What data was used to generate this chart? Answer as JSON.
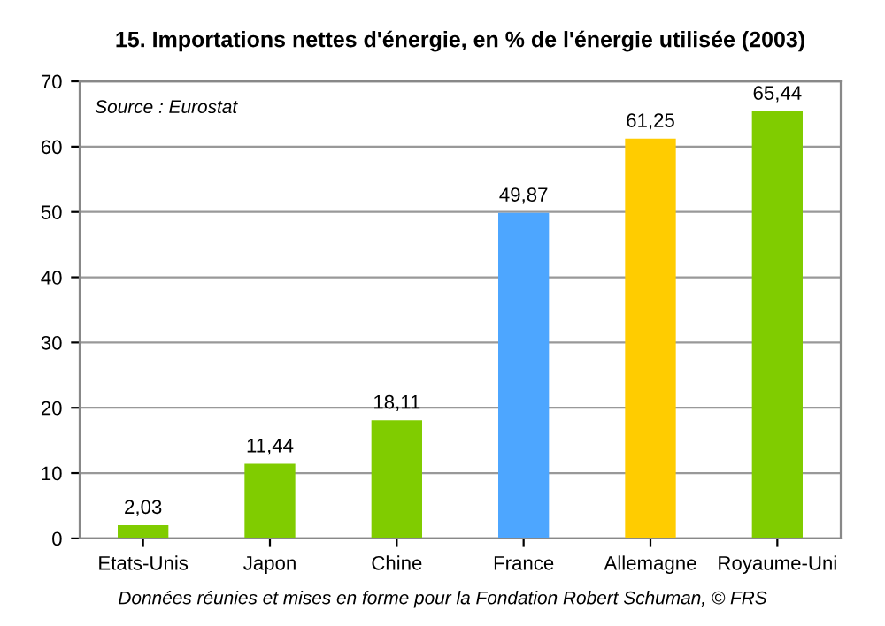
{
  "chart_data": {
    "type": "bar",
    "title": "15. Importations nettes d'énergie, en % de l'énergie utilisée (2003)",
    "categories": [
      "Etats-Unis",
      "Japon",
      "Chine",
      "France",
      "Allemagne",
      "Royaume-Uni"
    ],
    "values": [
      2.03,
      11.44,
      18.11,
      49.87,
      61.25,
      65.44
    ],
    "value_labels": [
      "2,03",
      "11,44",
      "18,11",
      "49,87",
      "61,25",
      "65,44"
    ],
    "colors": [
      "#80cc00",
      "#80cc00",
      "#80cc00",
      "#4da6ff",
      "#ffcc00",
      "#80cc00"
    ],
    "ylim": [
      0,
      70
    ],
    "yticks": [
      0,
      10,
      20,
      30,
      40,
      50,
      60,
      70
    ],
    "grid": "y",
    "annotations": [
      "Source : Eurostat",
      "Données réunies et mises en forme pour la Fondation Robert Schuman, © FRS"
    ]
  }
}
